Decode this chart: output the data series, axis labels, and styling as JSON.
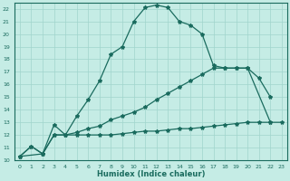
{
  "xlabel": "Humidex (Indice chaleur)",
  "xlim": [
    -0.5,
    23.5
  ],
  "ylim": [
    10,
    22.5
  ],
  "xticks": [
    0,
    1,
    2,
    3,
    4,
    5,
    6,
    7,
    8,
    9,
    10,
    11,
    12,
    13,
    14,
    15,
    16,
    17,
    18,
    19,
    20,
    21,
    22,
    23
  ],
  "yticks": [
    10,
    11,
    12,
    13,
    14,
    15,
    16,
    17,
    18,
    19,
    20,
    21,
    22
  ],
  "bg_color": "#c5ece5",
  "line_color": "#1a6b5e",
  "grid_color": "#a0d4cc",
  "curve1_x": [
    0,
    1,
    2,
    3,
    4,
    5,
    6,
    7,
    8,
    9,
    10,
    11,
    12,
    13,
    14,
    15,
    16,
    17,
    18,
    19,
    20,
    21,
    22
  ],
  "curve1_y": [
    10.3,
    11.1,
    10.5,
    12.8,
    12.0,
    13.5,
    14.8,
    16.3,
    18.4,
    19.0,
    21.0,
    22.1,
    22.3,
    22.1,
    21.0,
    20.7,
    20.0,
    17.5,
    17.3,
    17.3,
    17.3,
    16.5,
    15.0
  ],
  "curve2_x": [
    0,
    1,
    2,
    3,
    4,
    5,
    6,
    7,
    8,
    9,
    10,
    11,
    12,
    13,
    14,
    15,
    16,
    17,
    18,
    19,
    20,
    22
  ],
  "curve2_y": [
    10.3,
    11.1,
    10.5,
    12.0,
    12.0,
    12.2,
    12.5,
    12.7,
    13.2,
    13.5,
    13.8,
    14.2,
    14.8,
    15.3,
    15.8,
    16.3,
    16.8,
    17.3,
    17.3,
    17.3,
    17.3,
    13.0
  ],
  "curve3_x": [
    0,
    2,
    3,
    4,
    5,
    6,
    7,
    8,
    9,
    10,
    11,
    12,
    13,
    14,
    15,
    16,
    17,
    18,
    19,
    20,
    21,
    22,
    23
  ],
  "curve3_y": [
    10.3,
    10.5,
    12.0,
    12.0,
    12.0,
    12.0,
    12.0,
    12.0,
    12.1,
    12.2,
    12.3,
    12.3,
    12.4,
    12.5,
    12.5,
    12.6,
    12.7,
    12.8,
    12.9,
    13.0,
    13.0,
    13.0,
    13.0
  ]
}
